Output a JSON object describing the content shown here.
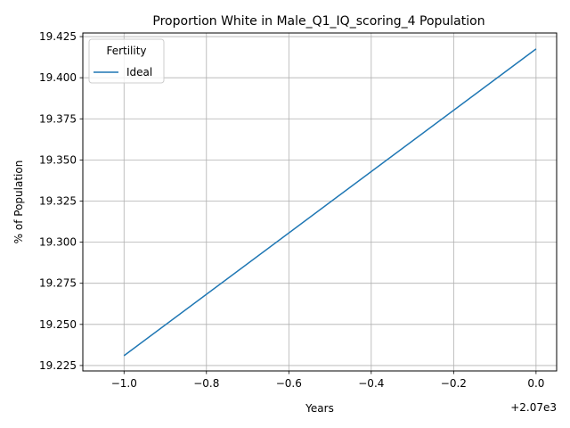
{
  "chart_data": {
    "type": "line",
    "title": "Proportion White in Male_Q1_IQ_scoring_4 Population",
    "xlabel": "Years",
    "ylabel": "% of Population",
    "x_offset_label": "+2.07e3",
    "xlim": [
      -1.1,
      0.05
    ],
    "ylim": [
      19.2217,
      19.4272
    ],
    "x_ticks": [
      -1.0,
      -0.8,
      -0.6,
      -0.4,
      -0.2,
      0.0
    ],
    "x_tick_labels": [
      "−1.0",
      "−0.8",
      "−0.6",
      "−0.4",
      "−0.2",
      "0.0"
    ],
    "y_ticks": [
      19.225,
      19.25,
      19.275,
      19.3,
      19.325,
      19.35,
      19.375,
      19.4,
      19.425
    ],
    "y_tick_labels": [
      "19.225",
      "19.250",
      "19.275",
      "19.300",
      "19.325",
      "19.350",
      "19.375",
      "19.400",
      "19.425"
    ],
    "grid": true,
    "legend": {
      "title": "Fertility",
      "placement": "top-left"
    },
    "series": [
      {
        "name": "Ideal",
        "color": "#1f77b4",
        "x": [
          -1.0,
          0.0
        ],
        "y": [
          19.231,
          19.4175
        ]
      }
    ]
  }
}
